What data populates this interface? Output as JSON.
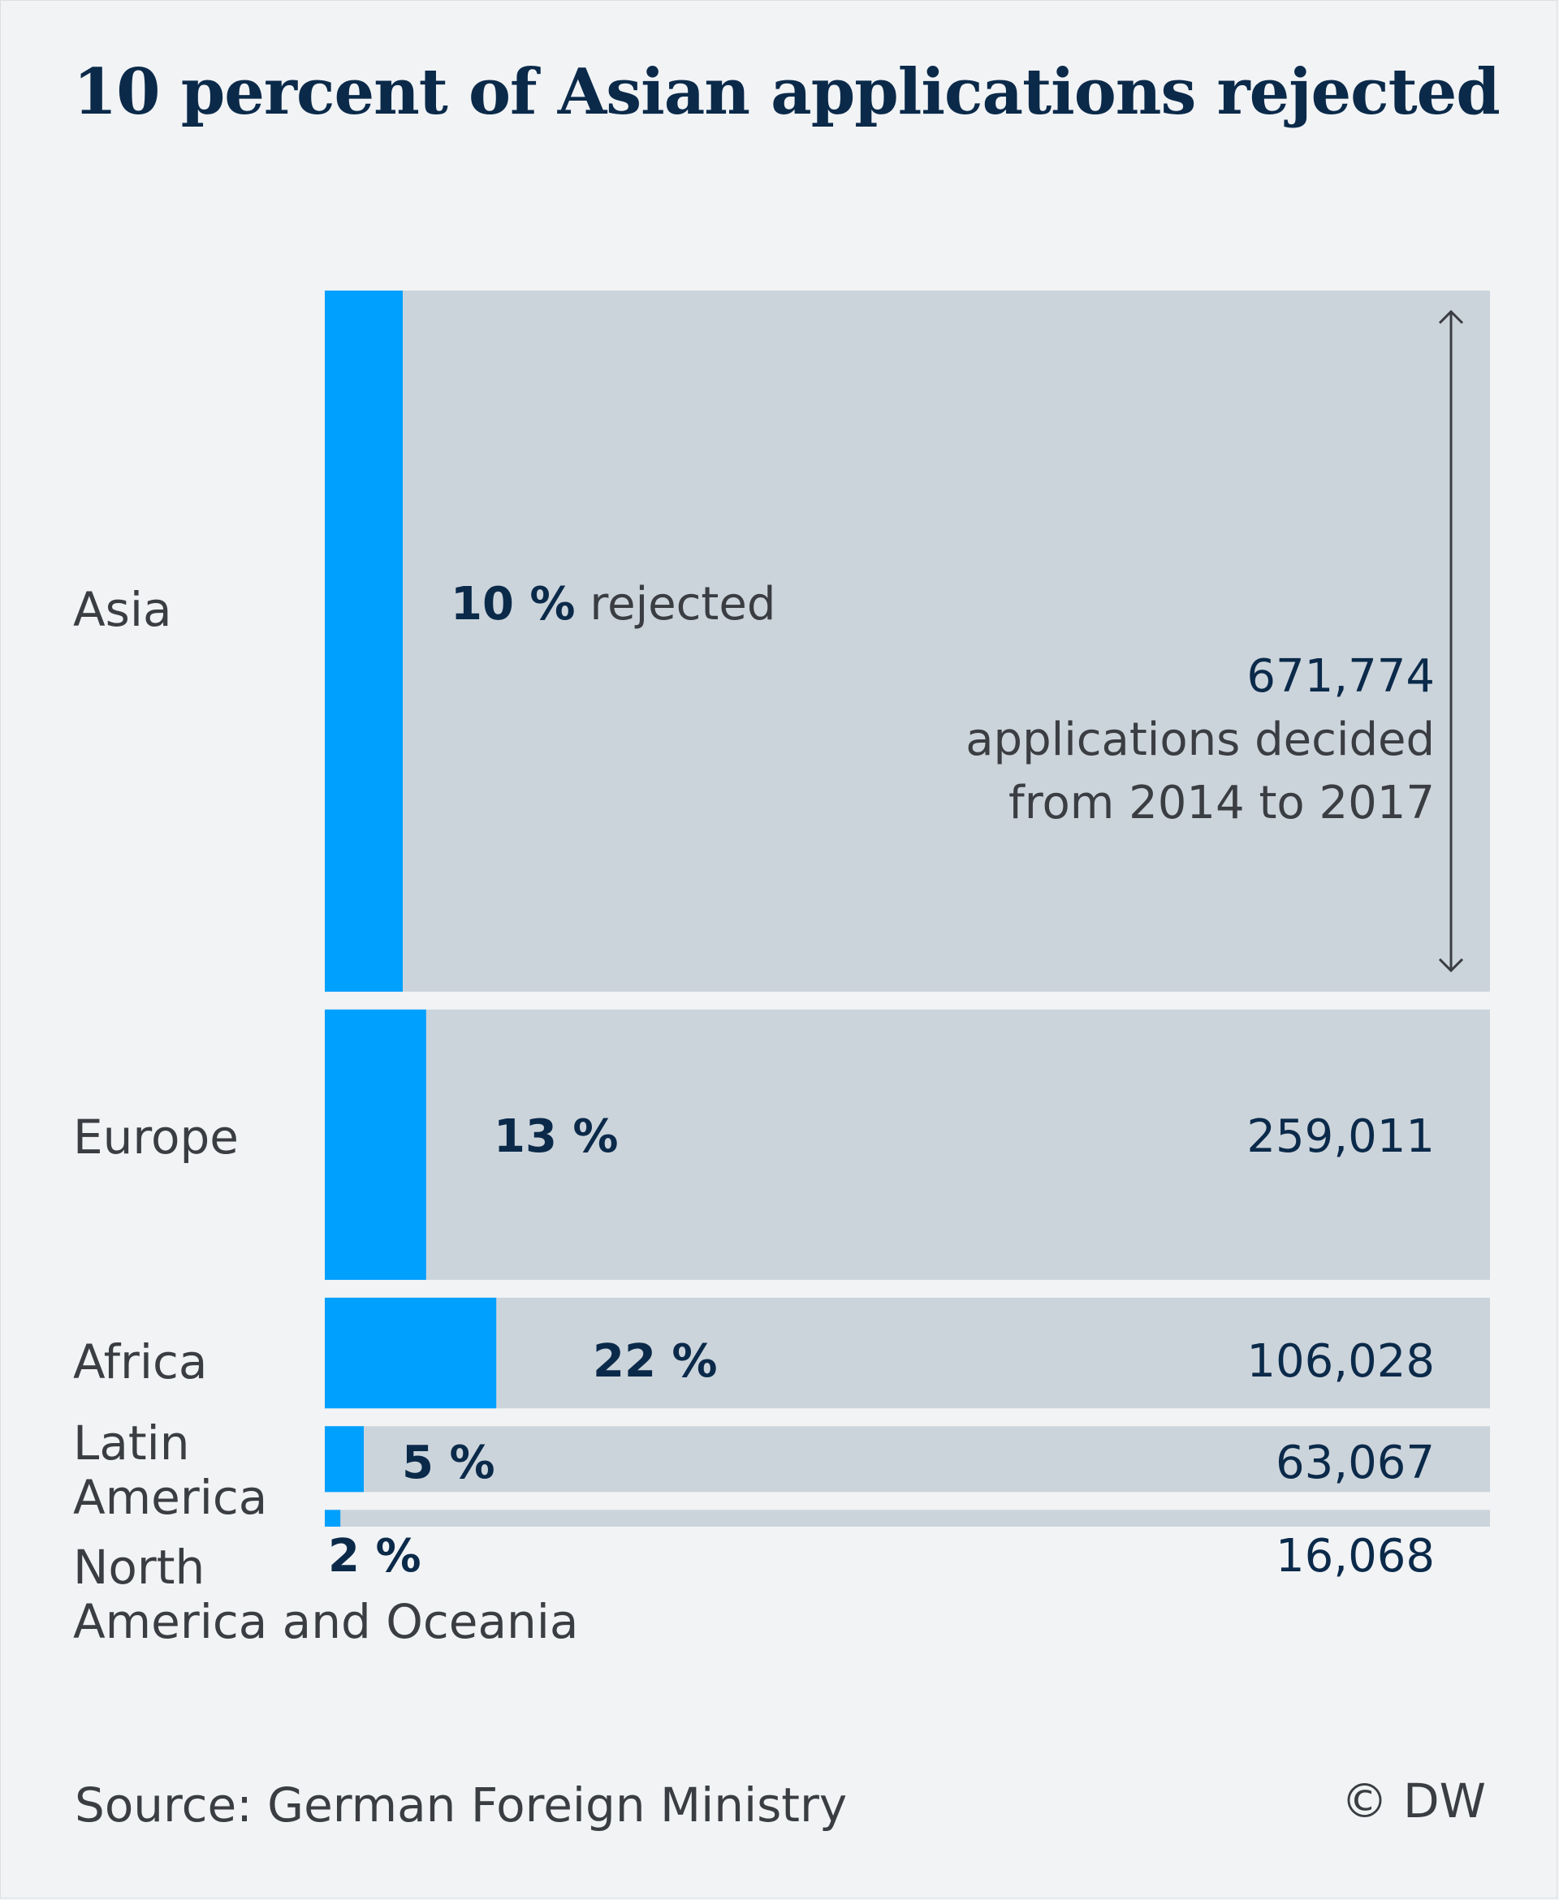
{
  "chart_data": {
    "type": "bar",
    "title": "10 percent of Asian applications rejected",
    "categories": [
      "Asia",
      "Europe",
      "Africa",
      "Latin America",
      "North America and Oceania"
    ],
    "totals": [
      671774,
      259011,
      106028,
      63067,
      16068
    ],
    "totals_labels": [
      "671,774",
      "259,011",
      "106,028",
      "63,067",
      "16,068"
    ],
    "rejected_pct": [
      10,
      13,
      22,
      5,
      2
    ],
    "pct_labels": [
      "10 %",
      "13 %",
      "22 %",
      "5 %",
      "2 %"
    ],
    "asia_suffix": "rejected",
    "note": [
      "applications decided",
      "from 2014 to 2017"
    ],
    "colors": {
      "rejected": "#00a0ff",
      "total": "#ccd4db",
      "text_dark": "#0b2a4a",
      "text": "#3a3d42",
      "background": "#f1f3f5"
    }
  },
  "labels": {
    "latin": [
      "Latin",
      "America"
    ],
    "north": [
      "North",
      "America and Oceania"
    ]
  },
  "source": "Source: German Foreign Ministry",
  "credit": "© DW"
}
